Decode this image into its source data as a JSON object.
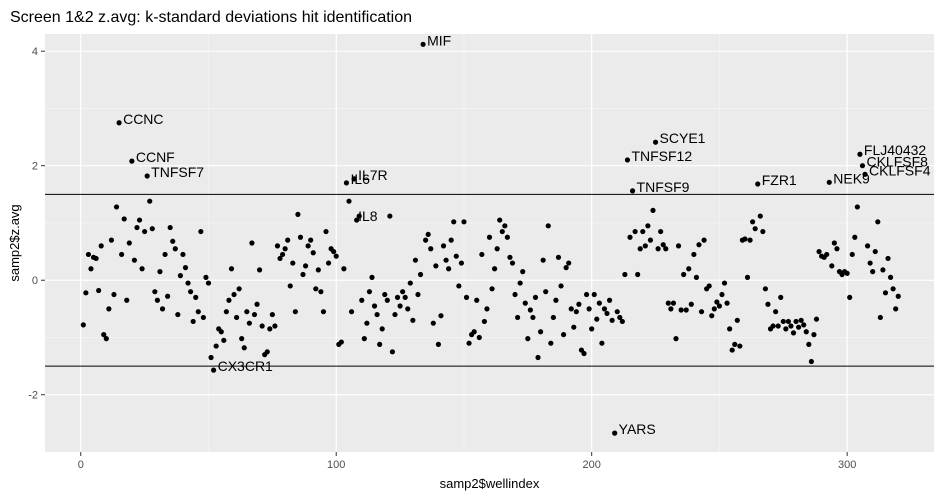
{
  "chart_data": {
    "type": "scatter",
    "title": "Screen 1&2 z.avg: k-standard deviations hit identification",
    "xlabel": "samp2$wellindex",
    "ylabel": "samp2$z.avg",
    "xlim": [
      -14,
      334
    ],
    "ylim": [
      -3.0,
      4.3
    ],
    "xticks": [
      0,
      100,
      200,
      300
    ],
    "yticks": [
      -2,
      0,
      2,
      4
    ],
    "hlines": [
      1.5,
      -1.5
    ],
    "grid": true,
    "point_color": "#000000",
    "panel_background": "#ebebeb",
    "labels": [
      {
        "text": "MIF",
        "x": 134,
        "y": 4.12
      },
      {
        "text": "CCNC",
        "x": 15,
        "y": 2.75
      },
      {
        "text": "CCNF",
        "x": 20,
        "y": 2.08
      },
      {
        "text": "TNFSF7",
        "x": 26,
        "y": 1.82
      },
      {
        "text": "IL6",
        "x": 104,
        "y": 1.7
      },
      {
        "text": "IL7R",
        "x": 107,
        "y": 1.77
      },
      {
        "text": "IL8",
        "x": 107,
        "y": 1.05
      },
      {
        "text": "CX3CR1",
        "x": 52,
        "y": -1.57
      },
      {
        "text": "SCYE1",
        "x": 225,
        "y": 2.41
      },
      {
        "text": "TNFSF12",
        "x": 214,
        "y": 2.1
      },
      {
        "text": "TNFSF9",
        "x": 216,
        "y": 1.56
      },
      {
        "text": "YARS",
        "x": 209,
        "y": -2.67
      },
      {
        "text": "FZR1",
        "x": 265,
        "y": 1.68
      },
      {
        "text": "NEK9",
        "x": 293,
        "y": 1.71
      },
      {
        "text": "FLJ40432",
        "x": 305,
        "y": 2.2
      },
      {
        "text": "CKLFSF8",
        "x": 306,
        "y": 2.0
      },
      {
        "text": "CKLFSF4",
        "x": 307,
        "y": 1.85
      }
    ],
    "points": [
      [
        1,
        -0.78
      ],
      [
        2,
        -0.22
      ],
      [
        3,
        0.45
      ],
      [
        4,
        0.2
      ],
      [
        5,
        0.4
      ],
      [
        6,
        0.38
      ],
      [
        7,
        -0.18
      ],
      [
        8,
        0.6
      ],
      [
        9,
        -0.95
      ],
      [
        10,
        -1.02
      ],
      [
        11,
        -0.5
      ],
      [
        12,
        0.7
      ],
      [
        13,
        -0.25
      ],
      [
        14,
        1.28
      ],
      [
        15,
        2.75
      ],
      [
        16,
        0.45
      ],
      [
        17,
        1.07
      ],
      [
        18,
        -0.35
      ],
      [
        19,
        0.65
      ],
      [
        20,
        2.08
      ],
      [
        21,
        0.35
      ],
      [
        22,
        0.92
      ],
      [
        23,
        1.05
      ],
      [
        24,
        0.2
      ],
      [
        25,
        0.85
      ],
      [
        26,
        1.82
      ],
      [
        27,
        1.38
      ],
      [
        28,
        0.9
      ],
      [
        29,
        -0.2
      ],
      [
        30,
        -0.35
      ],
      [
        31,
        0.15
      ],
      [
        32,
        -0.5
      ],
      [
        33,
        0.45
      ],
      [
        34,
        -0.28
      ],
      [
        35,
        0.92
      ],
      [
        36,
        0.68
      ],
      [
        37,
        0.55
      ],
      [
        38,
        -0.6
      ],
      [
        39,
        0.08
      ],
      [
        40,
        0.45
      ],
      [
        41,
        0.22
      ],
      [
        42,
        -0.05
      ],
      [
        43,
        -0.2
      ],
      [
        44,
        -0.72
      ],
      [
        45,
        -0.3
      ],
      [
        46,
        -0.55
      ],
      [
        47,
        0.85
      ],
      [
        48,
        -0.65
      ],
      [
        49,
        0.05
      ],
      [
        50,
        -0.05
      ],
      [
        51,
        -1.35
      ],
      [
        52,
        -1.57
      ],
      [
        53,
        -1.15
      ],
      [
        54,
        -0.85
      ],
      [
        55,
        -0.9
      ],
      [
        56,
        -1.05
      ],
      [
        57,
        -0.55
      ],
      [
        58,
        -0.35
      ],
      [
        59,
        0.2
      ],
      [
        60,
        -0.25
      ],
      [
        61,
        -0.65
      ],
      [
        62,
        -0.15
      ],
      [
        63,
        -1.02
      ],
      [
        64,
        -1.18
      ],
      [
        65,
        -0.55
      ],
      [
        66,
        -0.75
      ],
      [
        67,
        0.65
      ],
      [
        68,
        -0.6
      ],
      [
        69,
        -0.42
      ],
      [
        70,
        0.18
      ],
      [
        71,
        -0.8
      ],
      [
        72,
        -1.3
      ],
      [
        73,
        -1.25
      ],
      [
        74,
        -0.85
      ],
      [
        75,
        -0.6
      ],
      [
        76,
        -0.8
      ],
      [
        77,
        0.6
      ],
      [
        78,
        0.38
      ],
      [
        79,
        0.45
      ],
      [
        80,
        0.55
      ],
      [
        81,
        0.7
      ],
      [
        82,
        -0.1
      ],
      [
        83,
        0.3
      ],
      [
        84,
        -0.55
      ],
      [
        85,
        1.15
      ],
      [
        86,
        0.75
      ],
      [
        87,
        0.1
      ],
      [
        88,
        0.25
      ],
      [
        89,
        0.6
      ],
      [
        90,
        0.7
      ],
      [
        91,
        0.48
      ],
      [
        92,
        -0.15
      ],
      [
        93,
        0.18
      ],
      [
        94,
        -0.2
      ],
      [
        95,
        -0.55
      ],
      [
        96,
        0.85
      ],
      [
        97,
        0.3
      ],
      [
        98,
        0.55
      ],
      [
        99,
        0.5
      ],
      [
        100,
        0.42
      ],
      [
        101,
        -1.12
      ],
      [
        102,
        -1.08
      ],
      [
        103,
        0.2
      ],
      [
        104,
        1.7
      ],
      [
        105,
        1.38
      ],
      [
        106,
        -0.55
      ],
      [
        107,
        1.77
      ],
      [
        108,
        1.05
      ],
      [
        109,
        1.12
      ],
      [
        110,
        -0.35
      ],
      [
        111,
        -1.02
      ],
      [
        112,
        -0.75
      ],
      [
        113,
        -0.2
      ],
      [
        114,
        0.05
      ],
      [
        115,
        -0.45
      ],
      [
        116,
        -0.6
      ],
      [
        117,
        -1.12
      ],
      [
        118,
        -0.85
      ],
      [
        119,
        -0.25
      ],
      [
        120,
        -0.35
      ],
      [
        121,
        1.12
      ],
      [
        122,
        -1.25
      ],
      [
        123,
        -0.6
      ],
      [
        124,
        -0.3
      ],
      [
        125,
        -0.45
      ],
      [
        126,
        -0.2
      ],
      [
        127,
        -0.3
      ],
      [
        128,
        -0.5
      ],
      [
        129,
        -0.05
      ],
      [
        130,
        -0.7
      ],
      [
        131,
        0.35
      ],
      [
        132,
        -0.25
      ],
      [
        133,
        0.1
      ],
      [
        134,
        4.12
      ],
      [
        135,
        0.7
      ],
      [
        136,
        0.8
      ],
      [
        137,
        0.55
      ],
      [
        138,
        -0.75
      ],
      [
        139,
        0.25
      ],
      [
        140,
        -1.12
      ],
      [
        141,
        -0.62
      ],
      [
        142,
        0.6
      ],
      [
        143,
        0.35
      ],
      [
        144,
        0.2
      ],
      [
        145,
        0.7
      ],
      [
        146,
        1.02
      ],
      [
        147,
        0.42
      ],
      [
        148,
        -0.1
      ],
      [
        149,
        0.3
      ],
      [
        150,
        1.02
      ],
      [
        151,
        -0.3
      ],
      [
        152,
        -1.1
      ],
      [
        153,
        -0.95
      ],
      [
        154,
        -0.9
      ],
      [
        155,
        -0.35
      ],
      [
        156,
        -1.0
      ],
      [
        157,
        0.45
      ],
      [
        158,
        -0.72
      ],
      [
        159,
        -0.5
      ],
      [
        160,
        0.75
      ],
      [
        161,
        -0.15
      ],
      [
        162,
        0.2
      ],
      [
        163,
        0.55
      ],
      [
        164,
        1.05
      ],
      [
        165,
        0.85
      ],
      [
        166,
        0.95
      ],
      [
        167,
        0.75
      ],
      [
        168,
        0.4
      ],
      [
        169,
        0.3
      ],
      [
        170,
        -0.25
      ],
      [
        171,
        -0.65
      ],
      [
        172,
        -0.05
      ],
      [
        173,
        0.15
      ],
      [
        174,
        -0.4
      ],
      [
        175,
        -1.02
      ],
      [
        176,
        -0.52
      ],
      [
        177,
        -0.65
      ],
      [
        178,
        -0.3
      ],
      [
        179,
        -1.35
      ],
      [
        180,
        -0.9
      ],
      [
        181,
        0.35
      ],
      [
        182,
        -0.2
      ],
      [
        183,
        0.95
      ],
      [
        184,
        -1.1
      ],
      [
        185,
        -0.65
      ],
      [
        186,
        -0.35
      ],
      [
        187,
        0.4
      ],
      [
        188,
        -0.1
      ],
      [
        189,
        -0.95
      ],
      [
        190,
        0.22
      ],
      [
        191,
        0.3
      ],
      [
        192,
        -0.5
      ],
      [
        193,
        -0.82
      ],
      [
        194,
        -0.55
      ],
      [
        195,
        -0.42
      ],
      [
        196,
        -1.22
      ],
      [
        197,
        -1.28
      ],
      [
        198,
        -0.25
      ],
      [
        199,
        -0.5
      ],
      [
        200,
        -0.85
      ],
      [
        201,
        -0.25
      ],
      [
        202,
        -0.68
      ],
      [
        203,
        -0.4
      ],
      [
        204,
        -1.1
      ],
      [
        205,
        -0.5
      ],
      [
        206,
        -0.58
      ],
      [
        207,
        -0.35
      ],
      [
        208,
        -0.7
      ],
      [
        209,
        -2.67
      ],
      [
        210,
        -0.55
      ],
      [
        211,
        -0.65
      ],
      [
        212,
        -0.72
      ],
      [
        213,
        0.1
      ],
      [
        214,
        2.1
      ],
      [
        215,
        0.75
      ],
      [
        216,
        1.56
      ],
      [
        217,
        0.85
      ],
      [
        218,
        0.1
      ],
      [
        219,
        0.55
      ],
      [
        220,
        0.85
      ],
      [
        221,
        0.6
      ],
      [
        222,
        0.95
      ],
      [
        223,
        0.7
      ],
      [
        224,
        1.22
      ],
      [
        225,
        2.41
      ],
      [
        226,
        0.55
      ],
      [
        227,
        0.85
      ],
      [
        228,
        0.62
      ],
      [
        229,
        0.55
      ],
      [
        230,
        -0.4
      ],
      [
        231,
        -0.5
      ],
      [
        232,
        -0.4
      ],
      [
        233,
        -1.02
      ],
      [
        234,
        0.6
      ],
      [
        235,
        -0.52
      ],
      [
        236,
        0.1
      ],
      [
        237,
        -0.52
      ],
      [
        238,
        0.2
      ],
      [
        239,
        -0.42
      ],
      [
        240,
        0.45
      ],
      [
        241,
        0.05
      ],
      [
        242,
        0.62
      ],
      [
        243,
        -0.55
      ],
      [
        244,
        0.7
      ],
      [
        245,
        -0.15
      ],
      [
        246,
        -0.1
      ],
      [
        247,
        -0.62
      ],
      [
        248,
        -0.5
      ],
      [
        249,
        -0.38
      ],
      [
        250,
        -0.45
      ],
      [
        251,
        -0.25
      ],
      [
        252,
        -0.05
      ],
      [
        253,
        -0.4
      ],
      [
        254,
        -0.85
      ],
      [
        255,
        -1.22
      ],
      [
        256,
        -1.12
      ],
      [
        257,
        -0.7
      ],
      [
        258,
        -1.15
      ],
      [
        259,
        0.7
      ],
      [
        260,
        0.72
      ],
      [
        261,
        0.05
      ],
      [
        262,
        0.7
      ],
      [
        263,
        1.02
      ],
      [
        264,
        0.9
      ],
      [
        265,
        1.68
      ],
      [
        266,
        1.12
      ],
      [
        267,
        0.85
      ],
      [
        268,
        -0.15
      ],
      [
        269,
        -0.42
      ],
      [
        270,
        -0.85
      ],
      [
        271,
        -0.8
      ],
      [
        272,
        -0.55
      ],
      [
        273,
        -0.8
      ],
      [
        274,
        -0.3
      ],
      [
        275,
        -0.72
      ],
      [
        276,
        -0.85
      ],
      [
        277,
        -0.72
      ],
      [
        278,
        -0.8
      ],
      [
        279,
        -0.92
      ],
      [
        280,
        -0.72
      ],
      [
        281,
        -0.82
      ],
      [
        282,
        -0.7
      ],
      [
        283,
        -0.78
      ],
      [
        284,
        -0.9
      ],
      [
        285,
        -1.12
      ],
      [
        286,
        -1.42
      ],
      [
        287,
        -0.95
      ],
      [
        288,
        -0.68
      ],
      [
        289,
        0.5
      ],
      [
        290,
        0.42
      ],
      [
        291,
        0.4
      ],
      [
        292,
        0.45
      ],
      [
        293,
        1.71
      ],
      [
        294,
        0.25
      ],
      [
        295,
        0.65
      ],
      [
        296,
        0.55
      ],
      [
        297,
        0.15
      ],
      [
        298,
        0.1
      ],
      [
        299,
        0.15
      ],
      [
        300,
        0.12
      ],
      [
        301,
        -0.3
      ],
      [
        302,
        0.45
      ],
      [
        303,
        0.75
      ],
      [
        304,
        1.28
      ],
      [
        305,
        2.2
      ],
      [
        306,
        2.0
      ],
      [
        307,
        1.85
      ],
      [
        308,
        0.6
      ],
      [
        309,
        0.3
      ],
      [
        310,
        0.15
      ],
      [
        311,
        0.5
      ],
      [
        312,
        1.02
      ],
      [
        313,
        -0.65
      ],
      [
        314,
        0.18
      ],
      [
        315,
        -0.22
      ],
      [
        316,
        0.38
      ],
      [
        317,
        0.05
      ],
      [
        318,
        -0.15
      ],
      [
        319,
        -0.5
      ],
      [
        320,
        -0.28
      ]
    ]
  }
}
